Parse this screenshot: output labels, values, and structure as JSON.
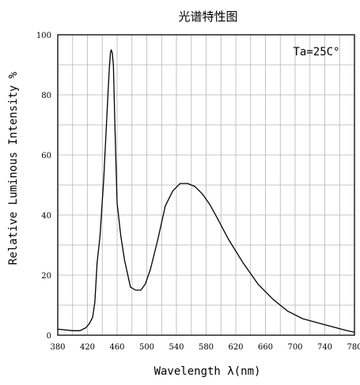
{
  "chart_data": {
    "type": "line",
    "title": "光谱特性图",
    "annotation": "Ta=25C°",
    "xlabel": "Wavelength λ(nm)",
    "ylabel": "Relative Luminous Intensity %",
    "xlim": [
      380,
      780
    ],
    "ylim": [
      0,
      100
    ],
    "xticks": [
      "380",
      "420",
      "460",
      "500",
      "540",
      "580",
      "620",
      "660",
      "700",
      "740",
      "780"
    ],
    "yticks": [
      "0",
      "20",
      "40",
      "60",
      "80",
      "100"
    ],
    "grid": true,
    "series": [
      {
        "color": "#000000",
        "x": [
          380,
          400,
          410,
          418,
          423,
          427,
          430,
          433,
          437,
          442,
          446,
          448,
          449.5,
          451,
          452,
          453.5,
          455,
          457,
          460,
          465,
          470,
          478,
          485,
          492,
          498,
          505,
          515,
          525,
          535,
          545,
          555,
          565,
          575,
          585,
          595,
          610,
          630,
          650,
          670,
          690,
          710,
          740,
          770,
          780
        ],
        "y": [
          2,
          1.5,
          1.5,
          2.5,
          4,
          6,
          11,
          24,
          33,
          52,
          72,
          82,
          89,
          94,
          95,
          94,
          90,
          70,
          44,
          33,
          25,
          16,
          15,
          15,
          17,
          22,
          32,
          43,
          48,
          50.5,
          50.5,
          49.5,
          47,
          43.5,
          39,
          32,
          24,
          17,
          12,
          8,
          5.5,
          3.5,
          1.5,
          1
        ]
      }
    ]
  }
}
